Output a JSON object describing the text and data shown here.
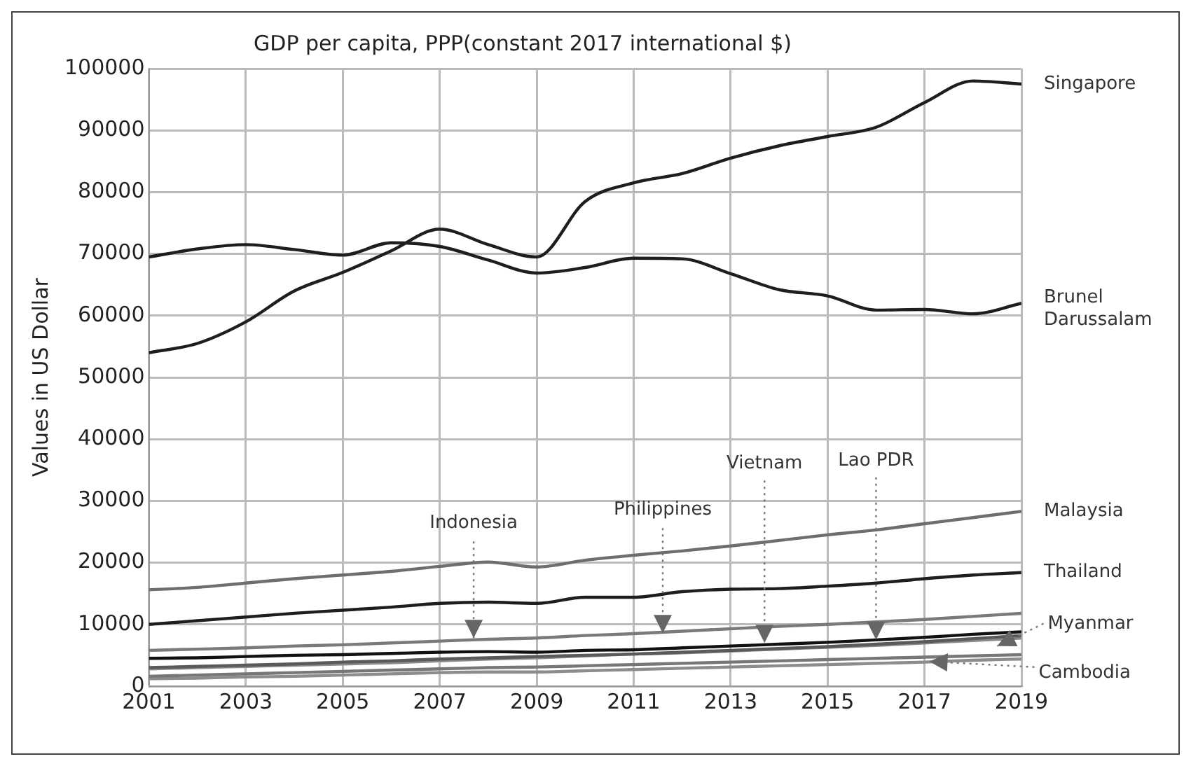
{
  "chart_data": {
    "type": "line",
    "title": "GDP per capita, PPP(constant 2017 international $)",
    "ylabel": "Values in US Dollar",
    "x": [
      2001,
      2002,
      2003,
      2004,
      2005,
      2006,
      2007,
      2008,
      2009,
      2010,
      2011,
      2012,
      2013,
      2014,
      2015,
      2016,
      2017,
      2018,
      2019
    ],
    "series": [
      {
        "name": "Singapore",
        "color": "#1e1e1e",
        "values": [
          54000,
          55500,
          59000,
          64000,
          67000,
          70500,
          74000,
          71500,
          69500,
          78500,
          81500,
          83000,
          85500,
          87500,
          89000,
          90500,
          94500,
          98000,
          97500
        ]
      },
      {
        "name": "Brunel Darussalam",
        "color": "#1e1e1e",
        "values": [
          69500,
          70800,
          71500,
          70700,
          69800,
          71800,
          71200,
          69000,
          66900,
          67800,
          69300,
          69200,
          66800,
          64200,
          63200,
          60900,
          61000,
          60300,
          62000
        ]
      },
      {
        "name": "Malaysia",
        "color": "#6e6e6e",
        "values": [
          15600,
          16000,
          16700,
          17400,
          18000,
          18600,
          19400,
          20100,
          19300,
          20400,
          21200,
          21900,
          22700,
          23600,
          24500,
          25300,
          26300,
          27300,
          28300
        ]
      },
      {
        "name": "Thailand",
        "color": "#1e1e1e",
        "values": [
          10000,
          10600,
          11200,
          11800,
          12300,
          12800,
          13400,
          13600,
          13400,
          14400,
          14400,
          15300,
          15700,
          15800,
          16200,
          16700,
          17400,
          18000,
          18400
        ]
      },
      {
        "color": "#7a7a7a",
        "values": [
          5800,
          6000,
          6200,
          6500,
          6700,
          7000,
          7300,
          7600,
          7800,
          8200,
          8500,
          8900,
          9300,
          9700,
          10000,
          10400,
          10800,
          11300,
          11800
        ]
      },
      {
        "color": "#111111",
        "values": [
          4500,
          4600,
          4800,
          5000,
          5100,
          5300,
          5500,
          5600,
          5500,
          5800,
          5900,
          6200,
          6500,
          6800,
          7100,
          7500,
          7900,
          8400,
          8800
        ]
      },
      {
        "color": "#5a5a5a",
        "values": [
          3000,
          3200,
          3400,
          3600,
          3900,
          4100,
          4400,
          4600,
          4800,
          5000,
          5200,
          5500,
          5800,
          6100,
          6400,
          6800,
          7200,
          7700,
          8200
        ]
      },
      {
        "color": "#8a8a8a",
        "values": [
          2800,
          3000,
          3200,
          3400,
          3600,
          3800,
          4100,
          4400,
          4600,
          4900,
          5200,
          5400,
          5700,
          6000,
          6300,
          6600,
          7000,
          7400,
          7800
        ]
      },
      {
        "color": "#777777",
        "values": [
          1600,
          1800,
          2000,
          2200,
          2400,
          2600,
          2800,
          3000,
          3100,
          3300,
          3500,
          3700,
          3900,
          4100,
          4300,
          4500,
          4700,
          4900,
          5100
        ]
      },
      {
        "color": "#8c8c8c",
        "values": [
          1200,
          1300,
          1500,
          1600,
          1800,
          2000,
          2200,
          2300,
          2300,
          2500,
          2700,
          2900,
          3100,
          3300,
          3500,
          3700,
          3900,
          4200,
          4400
        ]
      }
    ],
    "annotations": [
      {
        "text": "Indonesia",
        "x": 2007.7,
        "y": 7800
      },
      {
        "text": "Philippines",
        "x": 2011.6,
        "y": 8600
      },
      {
        "text": "Vietnam",
        "x": 2013.7,
        "y": 7000
      },
      {
        "text": "Lao PDR",
        "x": 2016,
        "y": 7500
      },
      {
        "text": "Myanmar",
        "x": 2018.5,
        "y": 6500
      },
      {
        "text": "Cambodia",
        "x": 2017.1,
        "y": 4000
      }
    ],
    "xlim": [
      2001,
      2019
    ],
    "xticks": [
      2001,
      2003,
      2005,
      2007,
      2009,
      2011,
      2013,
      2015,
      2017,
      2019
    ],
    "ylim": [
      0,
      100000
    ],
    "yticks": [
      0,
      10000,
      20000,
      30000,
      40000,
      50000,
      60000,
      70000,
      80000,
      90000,
      100000
    ],
    "grid": true,
    "legend": false,
    "marker": "none",
    "line_style": "solid"
  }
}
